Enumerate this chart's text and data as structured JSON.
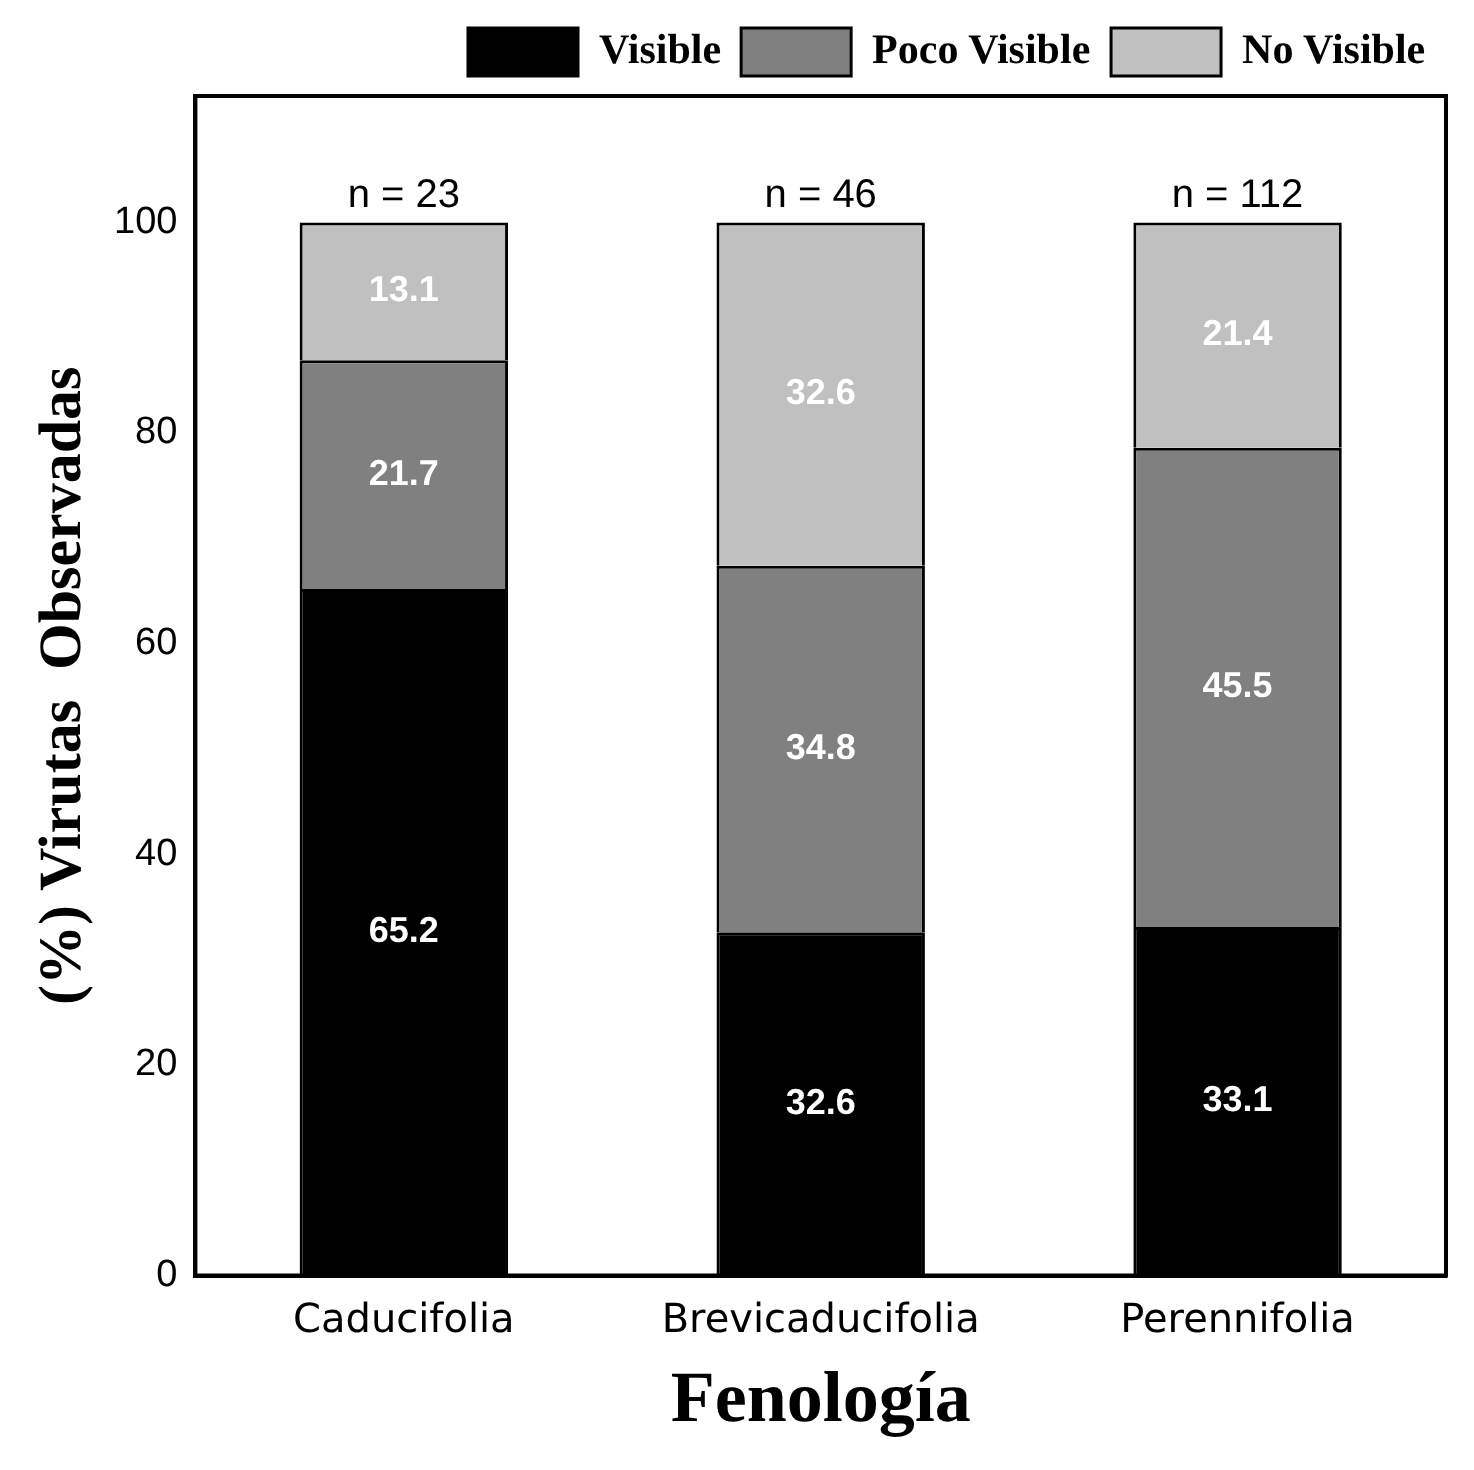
{
  "chart_data": {
    "type": "bar",
    "stacked": true,
    "xlabel": "Fenología",
    "ylabel": "(%) Virutas  Observadas",
    "categories": [
      "Caducifolia",
      "Brevicaducifolia",
      "Perennifolia"
    ],
    "series": [
      {
        "name": "Visible",
        "color": "#000000",
        "values": [
          65.2,
          32.6,
          33.1
        ]
      },
      {
        "name": "Poco Visible",
        "color": "#808080",
        "values": [
          21.7,
          34.8,
          45.5
        ]
      },
      {
        "name": "No Visible",
        "color": "#c0c0c0",
        "values": [
          13.1,
          32.6,
          21.4
        ]
      }
    ],
    "ylim": [
      0,
      112
    ],
    "yticks": [
      0,
      20,
      40,
      60,
      80,
      100
    ],
    "grid": false,
    "legend": "top",
    "data_labels": true,
    "annotations": [
      {
        "text": "n = 23",
        "x": "Caducifolia",
        "y": 100
      },
      {
        "text": "n = 46",
        "x": "Brevicaducifolia",
        "y": 100
      },
      {
        "text": "n = 112",
        "x": "Perennifolia",
        "y": 100
      }
    ]
  }
}
